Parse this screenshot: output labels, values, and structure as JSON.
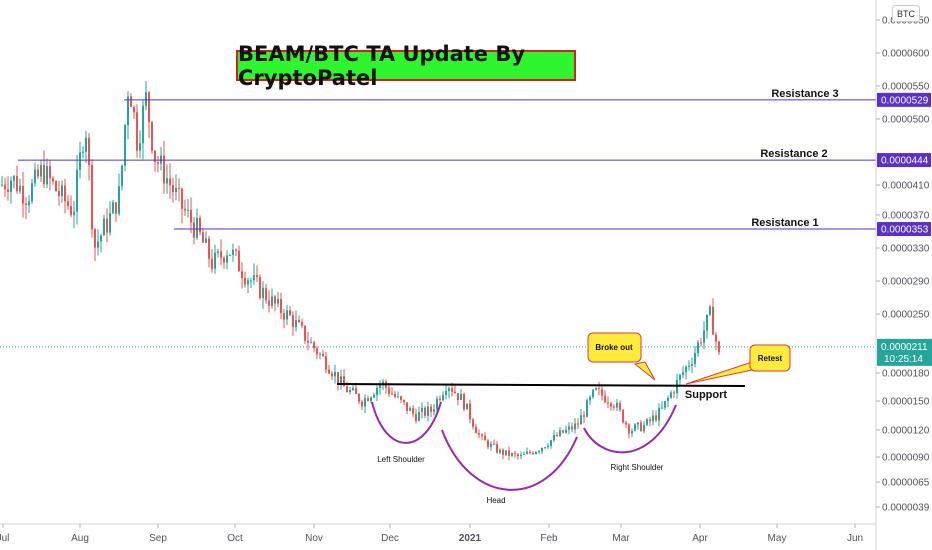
{
  "title": "BEAM/BTC TA Update By CryptoPatel",
  "symbol_badge": "BTC",
  "colors": {
    "up": "#26a69a",
    "down": "#ef5350",
    "resistance": "#5b2fc9",
    "pattern": "#9c27b0",
    "neckline": "#000000",
    "callout_fill": "#ffeb3b",
    "callout_border": "#e53935",
    "price_tag": "#2196f3",
    "title_fill": "#2ef52e"
  },
  "chart_data": {
    "type": "candlestick",
    "x_ticks": [
      "Jul",
      "Aug",
      "Sep",
      "Oct",
      "Nov",
      "Dec",
      "2021",
      "Feb",
      "Mar",
      "Apr",
      "May",
      "Jun"
    ],
    "y_ticks": [
      "0.0000039",
      "0.0000065",
      "0.0000090",
      "0.0000120",
      "0.0000150",
      "0.0000180",
      "0.0000250",
      "0.0000290",
      "0.0000330",
      "0.0000370",
      "0.0000410",
      "0.0000500",
      "0.0000550",
      "0.0000600",
      "0.0000650"
    ],
    "ylim": [
      3e-06,
      6.6e-05
    ],
    "current_price": {
      "value": 2.11e-05,
      "label": "0.0000211",
      "countdown": "10:25:14"
    },
    "series": [
      {
        "name": "",
        "path": [
          [
            "Jul",
            4.2e-05
          ],
          [
            "Jul",
            3.95e-05
          ],
          [
            "Jul",
            4.3e-05
          ],
          [
            "Jul",
            4e-05
          ],
          [
            "Jul",
            3.75e-05
          ],
          [
            "Aug",
            5e-05
          ],
          [
            "Aug",
            3.3e-05
          ],
          [
            "Aug",
            3.5e-05
          ],
          [
            "Aug",
            3.7e-05
          ],
          [
            "Aug",
            4e-05
          ],
          [
            "Aug",
            5.6e-05
          ],
          [
            "Aug",
            4.7e-05
          ],
          [
            "Aug",
            5.3e-05
          ],
          [
            "Aug",
            4.5e-05
          ],
          [
            "Sep",
            4.2e-05
          ],
          [
            "Sep",
            3.8e-05
          ],
          [
            "Sep",
            3.5e-05
          ],
          [
            "Sep",
            3.1e-05
          ],
          [
            "Sep",
            3.3e-05
          ],
          [
            "Oct",
            3e-05
          ],
          [
            "Oct",
            2.8e-05
          ],
          [
            "Oct",
            2.6e-05
          ],
          [
            "Oct",
            2.45e-05
          ],
          [
            "Oct",
            2.2e-05
          ],
          [
            "Nov",
            1.95e-05
          ],
          [
            "Nov",
            1.65e-05
          ],
          [
            "Nov",
            1.5e-05
          ],
          [
            "Nov",
            1.7e-05
          ],
          [
            "Dec",
            1.5e-05
          ],
          [
            "Dec",
            1.35e-05
          ],
          [
            "Dec",
            1.4e-05
          ],
          [
            "Dec",
            1.7e-05
          ],
          [
            "Dec",
            1.5e-05
          ],
          [
            "2021",
            1.1e-05
          ],
          [
            "2021",
            9.5e-06
          ],
          [
            "2021",
            9e-06
          ],
          [
            "2021",
            1e-05
          ],
          [
            "Feb",
            1.15e-05
          ],
          [
            "Feb",
            1.25e-05
          ],
          [
            "Feb",
            1.6e-05
          ],
          [
            "Feb",
            1.5e-05
          ],
          [
            "Mar",
            1.2e-05
          ],
          [
            "Mar",
            1.25e-05
          ],
          [
            "Mar",
            1.4e-05
          ],
          [
            "Mar",
            1.7e-05
          ],
          [
            "Mar",
            2e-05
          ],
          [
            "Apr",
            2.5e-05
          ],
          [
            "Apr",
            2e-05
          ],
          [
            "Apr",
            2.25e-05
          ],
          [
            "Apr",
            2.11e-05
          ]
        ]
      }
    ],
    "resistance_levels": [
      {
        "name": "Resistance 3",
        "value": 5.29e-05,
        "label": "0.0000529"
      },
      {
        "name": "Resistance 2",
        "value": 4.44e-05,
        "label": "0.0000444"
      },
      {
        "name": "Resistance 1",
        "value": 3.53e-05,
        "label": "0.0000353"
      }
    ],
    "neckline": {
      "value": 1.7e-05,
      "label": "Support"
    },
    "pattern_labels": [
      "Left Shoulder",
      "Head",
      "Right Shoulder"
    ],
    "callouts": [
      "Broke out",
      "Retest"
    ]
  }
}
